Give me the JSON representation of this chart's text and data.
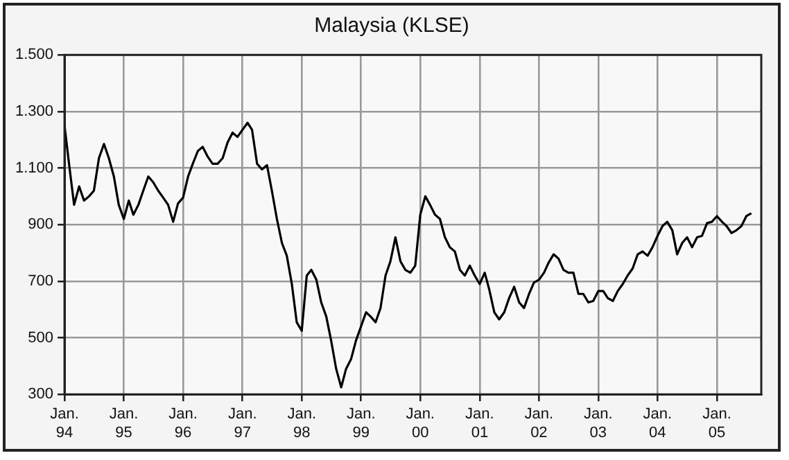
{
  "chart_data": {
    "type": "line",
    "title": "Malaysia (KLSE)",
    "x": [
      "1994-01",
      "1994-02",
      "1994-03",
      "1994-04",
      "1994-05",
      "1994-06",
      "1994-07",
      "1994-08",
      "1994-09",
      "1994-10",
      "1994-11",
      "1994-12",
      "1995-01",
      "1995-02",
      "1995-03",
      "1995-04",
      "1995-05",
      "1995-06",
      "1995-07",
      "1995-08",
      "1995-09",
      "1995-10",
      "1995-11",
      "1995-12",
      "1996-01",
      "1996-02",
      "1996-03",
      "1996-04",
      "1996-05",
      "1996-06",
      "1996-07",
      "1996-08",
      "1996-09",
      "1996-10",
      "1996-11",
      "1996-12",
      "1997-01",
      "1997-02",
      "1997-03",
      "1997-04",
      "1997-05",
      "1997-06",
      "1997-07",
      "1997-08",
      "1997-09",
      "1997-10",
      "1997-11",
      "1997-12",
      "1998-01",
      "1998-02",
      "1998-03",
      "1998-04",
      "1998-05",
      "1998-06",
      "1998-07",
      "1998-08",
      "1998-09",
      "1998-10",
      "1998-11",
      "1998-12",
      "1999-01",
      "1999-02",
      "1999-03",
      "1999-04",
      "1999-05",
      "1999-06",
      "1999-07",
      "1999-08",
      "1999-09",
      "1999-10",
      "1999-11",
      "1999-12",
      "2000-01",
      "2000-02",
      "2000-03",
      "2000-04",
      "2000-05",
      "2000-06",
      "2000-07",
      "2000-08",
      "2000-09",
      "2000-10",
      "2000-11",
      "2000-12",
      "2001-01",
      "2001-02",
      "2001-03",
      "2001-04",
      "2001-05",
      "2001-06",
      "2001-07",
      "2001-08",
      "2001-09",
      "2001-10",
      "2001-11",
      "2001-12",
      "2002-01",
      "2002-02",
      "2002-03",
      "2002-04",
      "2002-05",
      "2002-06",
      "2002-07",
      "2002-08",
      "2002-09",
      "2002-10",
      "2002-11",
      "2002-12",
      "2003-01",
      "2003-02",
      "2003-03",
      "2003-04",
      "2003-05",
      "2003-06",
      "2003-07",
      "2003-08",
      "2003-09",
      "2003-10",
      "2003-11",
      "2003-12",
      "2004-01",
      "2004-02",
      "2004-03",
      "2004-04",
      "2004-05",
      "2004-06",
      "2004-07",
      "2004-08",
      "2004-09",
      "2004-10",
      "2004-11",
      "2004-12",
      "2005-01",
      "2005-02",
      "2005-03",
      "2005-04",
      "2005-05",
      "2005-06",
      "2005-07",
      "2005-08"
    ],
    "series": [
      {
        "color": "#000000",
        "values": [
          1250,
          1100,
          970,
          1035,
          985,
          1000,
          1020,
          1135,
          1185,
          1135,
          1070,
          970,
          920,
          985,
          935,
          970,
          1020,
          1070,
          1050,
          1020,
          995,
          970,
          910,
          975,
          995,
          1070,
          1115,
          1160,
          1175,
          1140,
          1115,
          1115,
          1135,
          1190,
          1225,
          1210,
          1235,
          1260,
          1235,
          1115,
          1095,
          1110,
          1020,
          920,
          835,
          790,
          690,
          555,
          525,
          720,
          740,
          705,
          625,
          575,
          490,
          390,
          325,
          390,
          425,
          490,
          540,
          590,
          575,
          555,
          605,
          720,
          770,
          855,
          770,
          740,
          730,
          755,
          935,
          1000,
          970,
          935,
          920,
          855,
          820,
          805,
          740,
          720,
          755,
          720,
          690,
          730,
          670,
          590,
          565,
          590,
          640,
          680,
          625,
          605,
          655,
          695,
          705,
          730,
          765,
          795,
          780,
          740,
          730,
          730,
          655,
          655,
          625,
          630,
          665,
          665,
          640,
          630,
          665,
          690,
          720,
          745,
          795,
          805,
          790,
          820,
          860,
          895,
          910,
          880,
          795,
          835,
          855,
          820,
          855,
          860,
          905,
          910,
          930,
          910,
          895,
          870,
          880,
          895,
          930,
          940
        ]
      }
    ],
    "xlim": [
      "1994-01",
      "2005-10"
    ],
    "xticks": [
      {
        "value": "1994-01",
        "label": "Jan. 94"
      },
      {
        "value": "1995-01",
        "label": "Jan. 95"
      },
      {
        "value": "1996-01",
        "label": "Jan. 96"
      },
      {
        "value": "1997-01",
        "label": "Jan. 97"
      },
      {
        "value": "1998-01",
        "label": "Jan. 98"
      },
      {
        "value": "1999-01",
        "label": "Jan. 99"
      },
      {
        "value": "2000-01",
        "label": "Jan. 00"
      },
      {
        "value": "2001-01",
        "label": "Jan. 01"
      },
      {
        "value": "2002-01",
        "label": "Jan. 02"
      },
      {
        "value": "2003-01",
        "label": "Jan. 03"
      },
      {
        "value": "2004-01",
        "label": "Jan. 04"
      },
      {
        "value": "2005-01",
        "label": "Jan. 05"
      }
    ],
    "ylim": [
      300,
      1500
    ],
    "yticks": [
      300,
      500,
      700,
      900,
      {
        "value": 1100,
        "label": "1.100"
      },
      {
        "value": 1300,
        "label": "1.300"
      },
      {
        "value": 1500,
        "label": "1.500"
      }
    ],
    "grid": true,
    "legend": false,
    "marker": "none",
    "line_style": "solid"
  }
}
